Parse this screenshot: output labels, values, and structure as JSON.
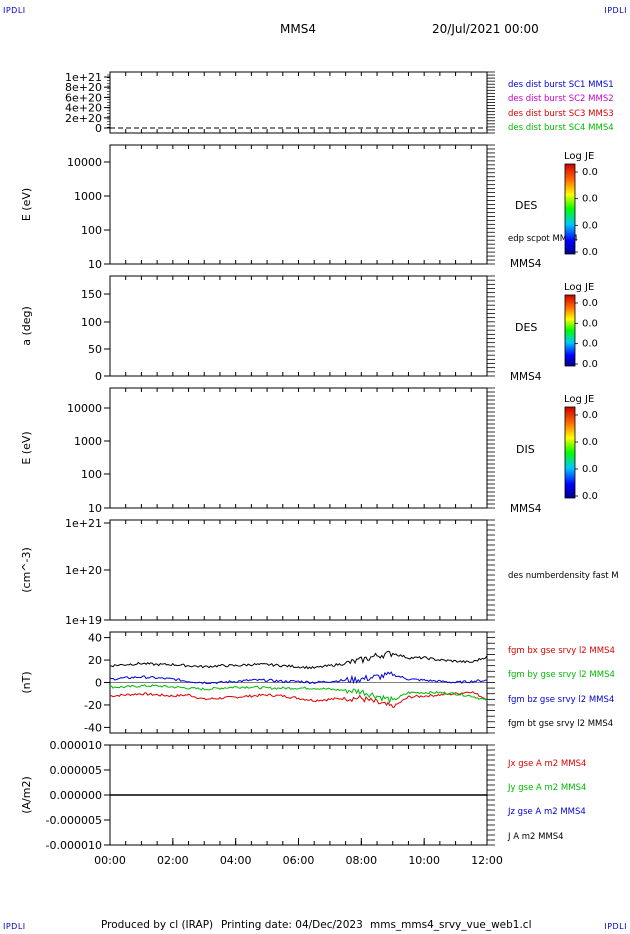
{
  "header": {
    "corner_left_top": "IPDLI",
    "corner_right_top": "IPDLI",
    "corner_left_bottom": "IPDLI",
    "corner_right_bottom": "IPDLI",
    "spacecraft": "MMS4",
    "datetime": "20/Jul/2021 00:00"
  },
  "footer": {
    "produced_by": "Produced by cl (IRAP)",
    "printing_date": "Printing date: 04/Dec/2023",
    "filename": "mms_mms4_srvy_vue_web1.cl"
  },
  "colors": {
    "blue": "#0000dd",
    "magenta": "#cc00cc",
    "red": "#dd0000",
    "green": "#00bb00",
    "black": "#000000"
  },
  "chart_data": [
    {
      "type": "line",
      "panel": "panel1",
      "ylabel": "",
      "yticks": [
        "1e+21",
        "8e+20",
        "6e+20",
        "4e+20",
        "2e+20",
        "0"
      ],
      "legend": [
        {
          "label": "des dist burst SC1 MMS1",
          "color": "#0000dd"
        },
        {
          "label": "des dist burst SC2 MMS2",
          "color": "#cc00cc"
        },
        {
          "label": "des dist burst SC3 MMS3",
          "color": "#dd0000"
        },
        {
          "label": "des dist burst SC4 MMS4",
          "color": "#00bb00"
        }
      ],
      "series": [
        {
          "values": [
            0,
            0
          ]
        }
      ]
    },
    {
      "type": "heatmap",
      "panel": "panel2",
      "ylabel": "E (eV)",
      "yscale": "log",
      "yticks": [
        "10000",
        "1000",
        "100",
        "10"
      ],
      "instrument": "DES",
      "scraft": "MMS4",
      "overlay_label": "edp scpot MMS4",
      "colorbar_title": "Log JE",
      "colorbar_ticks": [
        "0.0",
        "0.0",
        "0.0",
        "0.0"
      ]
    },
    {
      "type": "heatmap",
      "panel": "panel3",
      "ylabel": "a (deg)",
      "yticks": [
        "150",
        "100",
        "50",
        "0"
      ],
      "instrument": "DES",
      "scraft": "MMS4",
      "colorbar_title": "Log JE",
      "colorbar_ticks": [
        "0.0",
        "0.0",
        "0.0",
        "0.0"
      ]
    },
    {
      "type": "heatmap",
      "panel": "panel4",
      "ylabel": "E (eV)",
      "yscale": "log",
      "yticks": [
        "10000",
        "1000",
        "100",
        "10"
      ],
      "instrument": "DIS",
      "scraft": "MMS4",
      "colorbar_title": "Log JE",
      "colorbar_ticks": [
        "0.0",
        "0.0",
        "0.0",
        "0.0"
      ]
    },
    {
      "type": "line",
      "panel": "panel5",
      "ylabel": "(cm^-3)",
      "yscale": "log",
      "yticks": [
        "1e+21",
        "1e+20",
        "1e+19"
      ],
      "legend": [
        {
          "label": "des numberdensity fast M",
          "color": "#000000"
        }
      ]
    },
    {
      "type": "line",
      "panel": "panel6",
      "ylabel": "(nT)",
      "ylim": [
        -45,
        45
      ],
      "yticks": [
        "40",
        "20",
        "0",
        "-20",
        "-40"
      ],
      "x_hours": [
        0,
        0.5,
        1,
        1.5,
        2,
        2.5,
        3,
        3.5,
        4,
        4.5,
        5,
        5.5,
        6,
        6.5,
        7,
        7.5,
        8,
        8.5,
        9,
        9.5,
        10,
        10.5,
        11,
        11.5,
        12
      ],
      "series": [
        {
          "name": "fgm bx gse srvy l2 MMS4",
          "color": "#dd0000",
          "values": [
            -12,
            -11,
            -10,
            -11,
            -12,
            -11,
            -15,
            -14,
            -13,
            -12,
            -11,
            -12,
            -14,
            -16,
            -15,
            -14,
            -14,
            -18,
            -22,
            -13,
            -12,
            -11,
            -10,
            -8,
            -15
          ]
        },
        {
          "name": "fgm by gse srvy l2 MMS4",
          "color": "#00bb00",
          "values": [
            -4,
            -4,
            -3,
            -3,
            -4,
            -5,
            -6,
            -5,
            -4,
            -4,
            -5,
            -5,
            -5,
            -5,
            -6,
            -7,
            -8,
            -12,
            -16,
            -9,
            -9,
            -9,
            -10,
            -12,
            -16
          ]
        },
        {
          "name": "fgm bz gse srvy l2 MMS4",
          "color": "#0000dd",
          "values": [
            3,
            4,
            5,
            4,
            3,
            1,
            0,
            0,
            1,
            2,
            2,
            1,
            1,
            0,
            1,
            2,
            3,
            5,
            7,
            3,
            2,
            1,
            0,
            1,
            2
          ]
        },
        {
          "name": "fgm bt gse srvy l2 MMS4",
          "color": "#000000",
          "values": [
            15,
            16,
            17,
            16,
            16,
            15,
            14,
            15,
            15,
            16,
            16,
            15,
            14,
            13,
            15,
            17,
            20,
            24,
            26,
            22,
            22,
            20,
            19,
            18,
            23
          ]
        }
      ]
    },
    {
      "type": "line",
      "panel": "panel7",
      "ylabel": "(A/m2)",
      "ylim": [
        -1e-05,
        1e-05
      ],
      "yticks": [
        "0.000010",
        "0.000005",
        "0.000000",
        "-0.000005",
        "-0.000010"
      ],
      "legend": [
        {
          "label": "Jx gse A m2 MMS4",
          "color": "#dd0000"
        },
        {
          "label": "Jy gse A m2 MMS4",
          "color": "#00bb00"
        },
        {
          "label": "Jz gse A m2 MMS4",
          "color": "#0000dd"
        },
        {
          "label": "J A m2 MMS4",
          "color": "#000000"
        }
      ],
      "series": [
        {
          "values": [
            0,
            0
          ]
        }
      ]
    }
  ],
  "xaxis": {
    "ticks": [
      "00:00",
      "02:00",
      "04:00",
      "06:00",
      "08:00",
      "10:00",
      "12:00"
    ]
  }
}
